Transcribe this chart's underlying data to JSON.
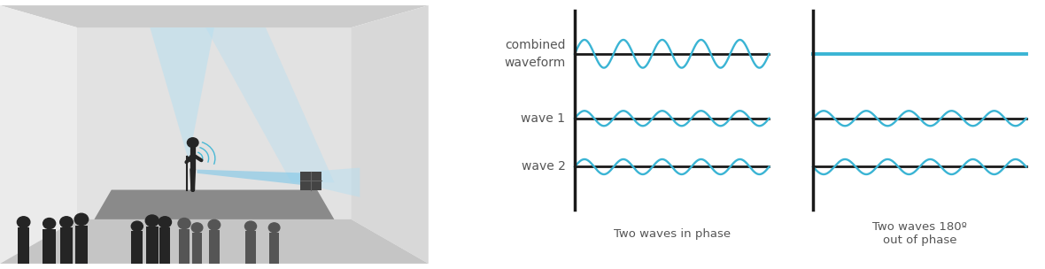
{
  "wave_color": "#3ab4d4",
  "line_color": "#1a1a1a",
  "label_color": "#555555",
  "wave_amplitude": 0.28,
  "combined_amplitude": 0.52,
  "n_cycles": 5,
  "label_fontsize": 10,
  "caption_fontsize": 9.5,
  "label_combined": "combined\nwaveform",
  "label_wave1": "wave 1",
  "label_wave2": "wave 2",
  "caption_in_phase": "Two waves in phase",
  "caption_out_phase": "Two waves 180º\nout of phase",
  "room_back_wall": "#e2e2e2",
  "room_ceiling": "#cccccc",
  "room_left_wall": "#ebebeb",
  "room_right_wall": "#d8d8d8",
  "room_floor": "#c5c5c5",
  "stage_color": "#8a8a8a",
  "silhouette_dark": "#252525",
  "silhouette_mid": "#555555",
  "beam_light": "#b8dff0",
  "beam_med": "#85c9e8"
}
